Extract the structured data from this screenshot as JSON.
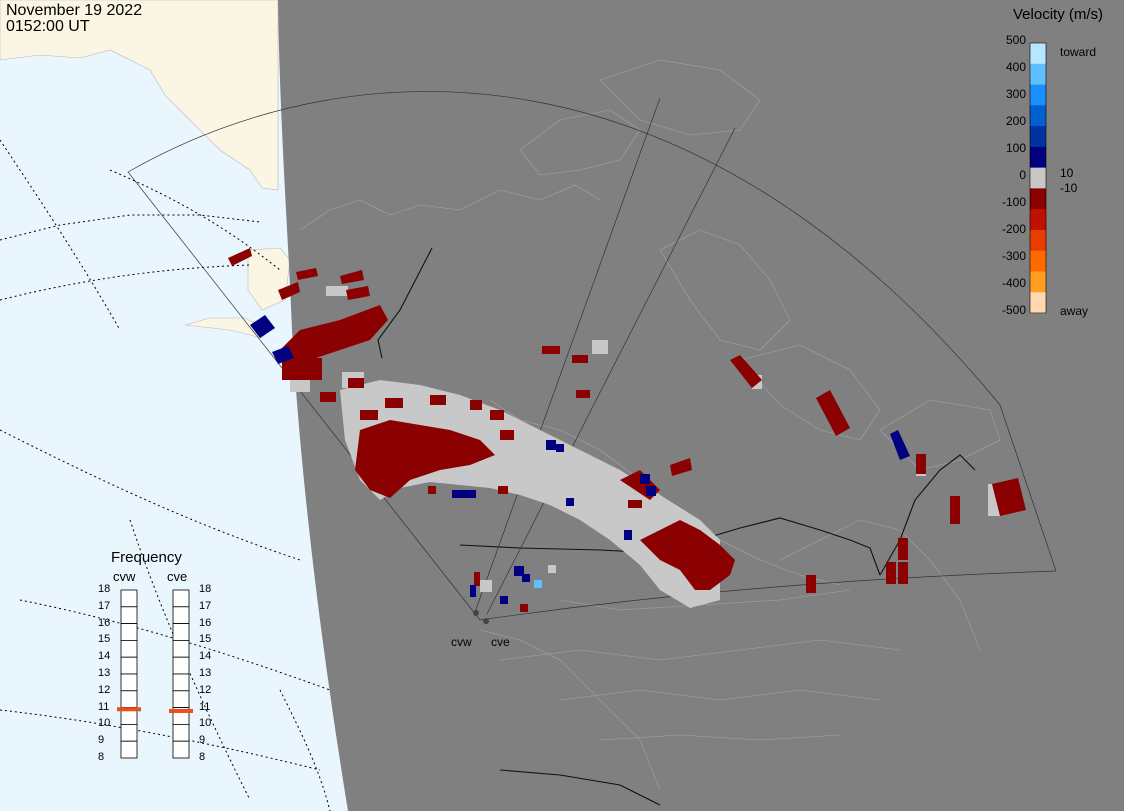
{
  "header": {
    "date": "November 19 2022",
    "time": "0152:00 UT"
  },
  "legend": {
    "title": "Velocity (m/s)",
    "ticks": [
      "500",
      "400",
      "300",
      "200",
      "100",
      "0",
      "-100",
      "-200",
      "-300",
      "-400",
      "-500"
    ],
    "toward_label": "toward",
    "away_label": "away",
    "cutoff_pos": "10",
    "cutoff_neg": "-10",
    "colors": [
      "#ffd8b0",
      "#ff9e20",
      "#ff6a00",
      "#e83c00",
      "#c01000",
      "#8b0000",
      "#c8c8c8",
      "#000080",
      "#0033a0",
      "#0060d0",
      "#1a90ff",
      "#60c0ff",
      "#b8e6ff"
    ]
  },
  "frequency": {
    "title": "Frequency",
    "radars": [
      {
        "name": "cvw",
        "mhz": 10.9
      },
      {
        "name": "cve",
        "mhz": 10.8
      }
    ],
    "scale": [
      "18",
      "17",
      "16",
      "15",
      "14",
      "13",
      "12",
      "11",
      "10",
      "9",
      "8"
    ],
    "indicator_color": "#e8501c"
  },
  "sites": {
    "west": "cvw",
    "east": "cve"
  },
  "map_colors": {
    "ocean": "#eaf6fd",
    "land_daylight": "#fbf6e4",
    "night": "#808080",
    "low_velocity": "#c8c8c8",
    "away_dark": "#8b0000",
    "toward_dark": "#000080"
  }
}
